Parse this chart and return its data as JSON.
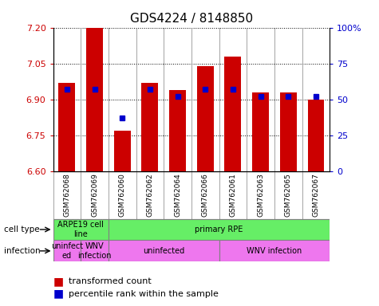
{
  "title": "GDS4224 / 8148850",
  "samples": [
    "GSM762068",
    "GSM762069",
    "GSM762060",
    "GSM762062",
    "GSM762064",
    "GSM762066",
    "GSM762061",
    "GSM762063",
    "GSM762065",
    "GSM762067"
  ],
  "transformed_counts": [
    6.97,
    7.2,
    6.77,
    6.97,
    6.94,
    7.04,
    7.08,
    6.93,
    6.93,
    6.9
  ],
  "percentile_ranks": [
    57,
    57,
    37,
    57,
    52,
    57,
    57,
    52,
    52,
    52
  ],
  "ylim": [
    6.6,
    7.2
  ],
  "yticks": [
    6.6,
    6.75,
    6.9,
    7.05,
    7.2
  ],
  "right_yticks": [
    0,
    25,
    50,
    75,
    100
  ],
  "bar_color": "#cc0000",
  "dot_color": "#0000cc",
  "bar_bottom": 6.6,
  "ct_groups": [
    {
      "label": "ARPE19 cell\nline",
      "start": 0,
      "end": 2,
      "color": "#66ee66"
    },
    {
      "label": "primary RPE",
      "start": 2,
      "end": 10,
      "color": "#66ee66"
    }
  ],
  "inf_groups": [
    {
      "label": "uninfect\ned",
      "start": 0,
      "end": 1,
      "color": "#ee77ee"
    },
    {
      "label": "WNV\ninfection",
      "start": 1,
      "end": 2,
      "color": "#ee77ee"
    },
    {
      "label": "uninfected",
      "start": 2,
      "end": 6,
      "color": "#ee77ee"
    },
    {
      "label": "WNV infection",
      "start": 6,
      "end": 10,
      "color": "#ee77ee"
    }
  ],
  "tick_color_left": "#cc0000",
  "tick_color_right": "#0000cc",
  "cell_type_row_label": "cell type",
  "infection_row_label": "infection",
  "legend_transformed": "transformed count",
  "legend_percentile": "percentile rank within the sample",
  "sample_label_bg": "#d8d8d8"
}
